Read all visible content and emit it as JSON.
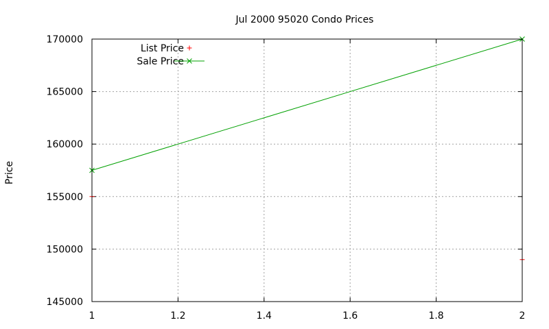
{
  "chart_data": {
    "type": "line",
    "title": "Jul 2000 95020 Condo Prices",
    "xlabel": "",
    "ylabel": "Price",
    "xlim": [
      1,
      2
    ],
    "ylim": [
      145000,
      170000
    ],
    "xticks": [
      "1",
      "1.2",
      "1.4",
      "1.6",
      "1.8",
      "2"
    ],
    "yticks": [
      "145000",
      "150000",
      "155000",
      "160000",
      "165000",
      "170000"
    ],
    "grid": true,
    "legend_position": "top-left",
    "series": [
      {
        "name": "List Price",
        "style": "points",
        "marker": "plus",
        "color": "#ff0000",
        "x": [
          1,
          2
        ],
        "y": [
          155000,
          149000
        ]
      },
      {
        "name": "Sale Price",
        "style": "linespoints",
        "marker": "cross",
        "color": "#00a000",
        "x": [
          1,
          2
        ],
        "y": [
          157500,
          170000
        ]
      }
    ]
  }
}
